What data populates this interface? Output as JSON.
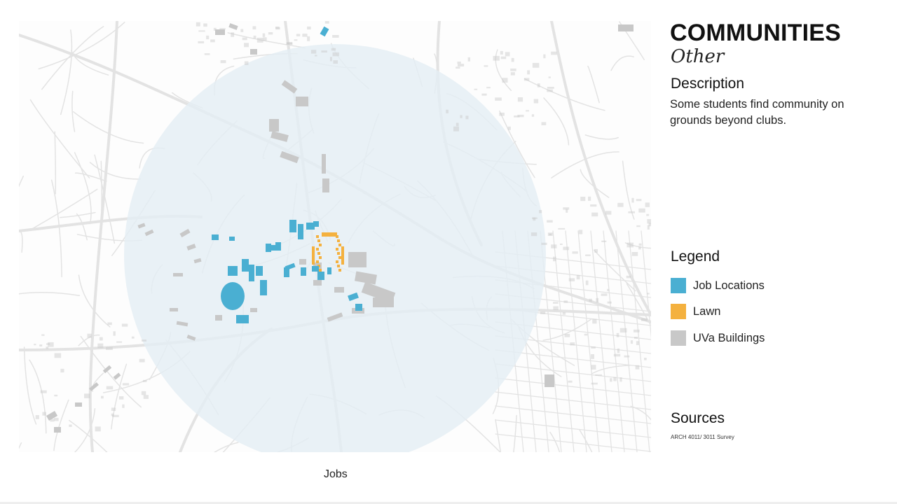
{
  "header": {
    "title": "COMMUNITIES",
    "subtitle": "Other"
  },
  "description": {
    "heading": "Description",
    "text": "Some students find community on grounds beyond clubs."
  },
  "legend": {
    "heading": "Legend",
    "items": [
      {
        "label": "Job Locations",
        "color": "#4aafd2"
      },
      {
        "label": "Lawn",
        "color": "#f4b13f"
      },
      {
        "label": "UVa Buildings",
        "color": "#c8c8c8"
      }
    ]
  },
  "sources": {
    "heading": "Sources",
    "text": "ARCH 4011/ 3011 Survey"
  },
  "map": {
    "caption": "Jobs",
    "walk_radius_color": "#e4eef4",
    "street_color": "#e3e3e3",
    "background_color": "#fdfdfd"
  }
}
